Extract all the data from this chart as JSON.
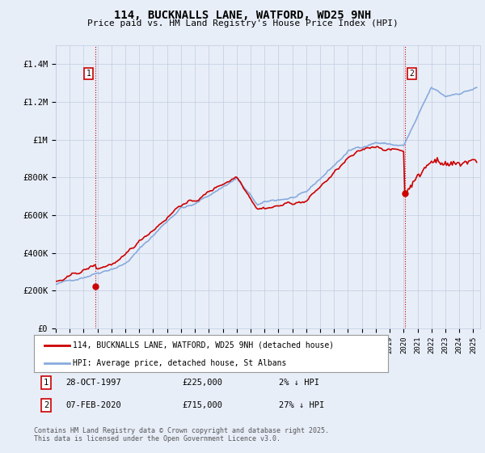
{
  "title": "114, BUCKNALLS LANE, WATFORD, WD25 9NH",
  "subtitle": "Price paid vs. HM Land Registry's House Price Index (HPI)",
  "ylabel_ticks": [
    "£0",
    "£200K",
    "£400K",
    "£600K",
    "£800K",
    "£1M",
    "£1.2M",
    "£1.4M"
  ],
  "ytick_values": [
    0,
    200000,
    400000,
    600000,
    800000,
    1000000,
    1200000,
    1400000
  ],
  "ylim": [
    0,
    1500000
  ],
  "xlim_start": 1995.0,
  "xlim_end": 2025.5,
  "background_color": "#e8eef8",
  "plot_bg_color": "#e8eef8",
  "grid_color": "#c0cce0",
  "hpi_color": "#88aadd",
  "price_color": "#cc0000",
  "vline_color": "#cc0000",
  "point1_x": 1997.83,
  "point1_y": 225000,
  "point2_x": 2020.1,
  "point2_y": 715000,
  "label_line1": "114, BUCKNALLS LANE, WATFORD, WD25 9NH (detached house)",
  "label_line2": "HPI: Average price, detached house, St Albans",
  "note1_box": "1",
  "note1_date": "28-OCT-1997",
  "note1_price": "£225,000",
  "note1_hpi": "2% ↓ HPI",
  "note2_box": "2",
  "note2_date": "07-FEB-2020",
  "note2_price": "£715,000",
  "note2_hpi": "27% ↓ HPI",
  "footer": "Contains HM Land Registry data © Crown copyright and database right 2025.\nThis data is licensed under the Open Government Licence v3.0."
}
